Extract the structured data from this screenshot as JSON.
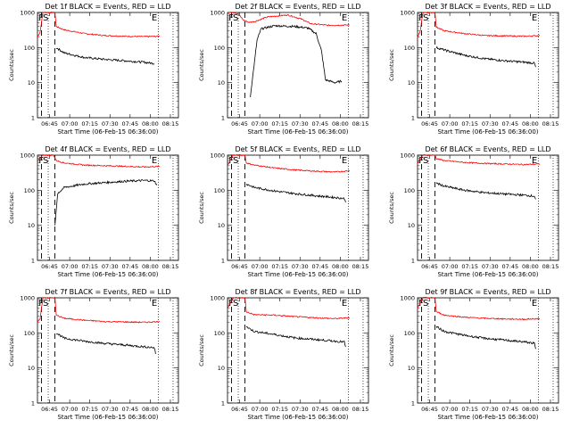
{
  "chart_data": [
    {
      "type": "line",
      "title": "Det 1f BLACK = Events, RED = LLD",
      "ylabel": "Counts/sec",
      "xlabel": "Start Time (06-Feb-15 06:36:00)",
      "x_ticks": [
        "06:45",
        "07:00",
        "07:15",
        "07:30",
        "07:45",
        "08:00",
        "08:15"
      ],
      "y_ticks": [
        "1",
        "10",
        "100",
        "1000"
      ],
      "ylim": [
        1,
        1000
      ],
      "yscale": "log",
      "xlim_minutes": [
        0,
        105
      ],
      "markers": [
        "F",
        "S",
        "E"
      ],
      "vlines_dashed_min": [
        3,
        13
      ],
      "vlines_dotted_min": [
        8,
        90,
        101
      ],
      "series": [
        {
          "color": "red",
          "values": [
            [
              0,
              200
            ],
            [
              2,
              280
            ],
            [
              4,
              1000
            ],
            [
              5,
              1000
            ],
            [
              13,
              1000
            ],
            [
              14,
              400
            ],
            [
              20,
              320
            ],
            [
              35,
              250
            ],
            [
              50,
              220
            ],
            [
              65,
              210
            ],
            [
              80,
              205
            ],
            [
              91,
              210
            ]
          ]
        },
        {
          "color": "black",
          "values": [
            [
              14,
              100
            ],
            [
              20,
              70
            ],
            [
              35,
              52
            ],
            [
              50,
              46
            ],
            [
              65,
              42
            ],
            [
              80,
              38
            ],
            [
              87,
              35
            ]
          ]
        }
      ]
    },
    {
      "type": "line",
      "title": "Det 2f BLACK = Events, RED = LLD",
      "ylabel": "Counts/sec",
      "xlabel": "Start Time (06-Feb-15 06:36:00)",
      "x_ticks": [
        "06:45",
        "07:00",
        "07:15",
        "07:30",
        "07:45",
        "08:00",
        "08:15"
      ],
      "y_ticks": [
        "1",
        "10",
        "100",
        "1000"
      ],
      "ylim": [
        1,
        1000
      ],
      "yscale": "log",
      "xlim_minutes": [
        0,
        105
      ],
      "markers": [
        "F",
        "S",
        "E"
      ],
      "vlines_dashed_min": [
        3,
        13
      ],
      "vlines_dotted_min": [
        8,
        90,
        101
      ],
      "series": [
        {
          "color": "red",
          "values": [
            [
              0,
              1000
            ],
            [
              5,
              1000
            ],
            [
              8,
              900
            ],
            [
              12,
              600
            ],
            [
              16,
              520
            ],
            [
              20,
              550
            ],
            [
              30,
              750
            ],
            [
              45,
              850
            ],
            [
              55,
              650
            ],
            [
              62,
              480
            ],
            [
              75,
              430
            ],
            [
              91,
              440
            ]
          ]
        },
        {
          "color": "black",
          "values": [
            [
              17,
              4
            ],
            [
              22,
              160
            ],
            [
              25,
              340
            ],
            [
              35,
              420
            ],
            [
              50,
              400
            ],
            [
              60,
              360
            ],
            [
              66,
              250
            ],
            [
              70,
              80
            ],
            [
              73,
              12
            ],
            [
              80,
              10
            ],
            [
              85,
              11
            ]
          ]
        }
      ]
    },
    {
      "type": "line",
      "title": "Det 3f BLACK = Events, RED = LLD",
      "ylabel": "Counts/sec",
      "xlabel": "Start Time (06-Feb-15 06:36:00)",
      "x_ticks": [
        "06:45",
        "07:00",
        "07:15",
        "07:30",
        "07:45",
        "08:00",
        "08:15"
      ],
      "y_ticks": [
        "1",
        "10",
        "100",
        "1000"
      ],
      "ylim": [
        1,
        1000
      ],
      "yscale": "log",
      "xlim_minutes": [
        0,
        105
      ],
      "markers": [
        "F",
        "S",
        "E"
      ],
      "vlines_dashed_min": [
        3,
        13
      ],
      "vlines_dotted_min": [
        8,
        90,
        101
      ],
      "series": [
        {
          "color": "red",
          "values": [
            [
              0,
              200
            ],
            [
              2,
              300
            ],
            [
              4,
              1000
            ],
            [
              13,
              1000
            ],
            [
              14,
              380
            ],
            [
              20,
              300
            ],
            [
              35,
              250
            ],
            [
              50,
              220
            ],
            [
              65,
              215
            ],
            [
              80,
              210
            ],
            [
              91,
              220
            ]
          ]
        },
        {
          "color": "black",
          "values": [
            [
              14,
              100
            ],
            [
              20,
              85
            ],
            [
              35,
              60
            ],
            [
              50,
              48
            ],
            [
              65,
              42
            ],
            [
              80,
              38
            ],
            [
              87,
              36
            ],
            [
              88,
              28
            ]
          ]
        }
      ]
    },
    {
      "type": "line",
      "title": "Det 4f BLACK = Events, RED = LLD",
      "ylabel": "Counts/sec",
      "xlabel": "Start Time (06-Feb-15 06:36:00)",
      "x_ticks": [
        "06:45",
        "07:00",
        "07:15",
        "07:30",
        "07:45",
        "08:00",
        "08:15"
      ],
      "y_ticks": [
        "1",
        "10",
        "100",
        "1000"
      ],
      "ylim": [
        1,
        1000
      ],
      "yscale": "log",
      "xlim_minutes": [
        0,
        105
      ],
      "markers": [
        "F",
        "S",
        "E"
      ],
      "vlines_dashed_min": [
        3,
        13
      ],
      "vlines_dotted_min": [
        8,
        90,
        101
      ],
      "series": [
        {
          "color": "red",
          "values": [
            [
              0,
              700
            ],
            [
              2,
              800
            ],
            [
              4,
              1000
            ],
            [
              12,
              1000
            ],
            [
              14,
              700
            ],
            [
              20,
              600
            ],
            [
              35,
              520
            ],
            [
              50,
              500
            ],
            [
              65,
              480
            ],
            [
              80,
              460
            ],
            [
              91,
              480
            ]
          ]
        },
        {
          "color": "black",
          "values": [
            [
              13,
              10
            ],
            [
              15,
              80
            ],
            [
              20,
              120
            ],
            [
              35,
              150
            ],
            [
              50,
              165
            ],
            [
              65,
              180
            ],
            [
              80,
              190
            ],
            [
              87,
              185
            ],
            [
              89,
              140
            ]
          ]
        }
      ]
    },
    {
      "type": "line",
      "title": "Det 5f BLACK = Events, RED = LLD",
      "ylabel": "Counts/sec",
      "xlabel": "Start Time (06-Feb-15 06:36:00)",
      "x_ticks": [
        "06:45",
        "07:00",
        "07:15",
        "07:30",
        "07:45",
        "08:00",
        "08:15"
      ],
      "y_ticks": [
        "1",
        "10",
        "100",
        "1000"
      ],
      "ylim": [
        1,
        1000
      ],
      "yscale": "log",
      "xlim_minutes": [
        0,
        105
      ],
      "markers": [
        "F",
        "S",
        "E"
      ],
      "vlines_dashed_min": [
        3,
        13
      ],
      "vlines_dotted_min": [
        8,
        90,
        101
      ],
      "series": [
        {
          "color": "red",
          "values": [
            [
              0,
              500
            ],
            [
              2,
              700
            ],
            [
              4,
              1000
            ],
            [
              13,
              1000
            ],
            [
              14,
              600
            ],
            [
              20,
              520
            ],
            [
              35,
              430
            ],
            [
              50,
              380
            ],
            [
              65,
              350
            ],
            [
              80,
              330
            ],
            [
              91,
              360
            ]
          ]
        },
        {
          "color": "black",
          "values": [
            [
              14,
              150
            ],
            [
              20,
              120
            ],
            [
              35,
              95
            ],
            [
              50,
              80
            ],
            [
              65,
              70
            ],
            [
              80,
              62
            ],
            [
              87,
              58
            ],
            [
              88,
              45
            ]
          ]
        }
      ]
    },
    {
      "type": "line",
      "title": "Det 6f BLACK = Events, RED = LLD",
      "ylabel": "Counts/sec",
      "xlabel": "Start Time (06-Feb-15 06:36:00)",
      "x_ticks": [
        "06:45",
        "07:00",
        "07:15",
        "07:30",
        "07:45",
        "08:00",
        "08:15"
      ],
      "y_ticks": [
        "1",
        "10",
        "100",
        "1000"
      ],
      "ylim": [
        1,
        1000
      ],
      "yscale": "log",
      "xlim_minutes": [
        0,
        105
      ],
      "markers": [
        "F",
        "S",
        "E"
      ],
      "vlines_dashed_min": [
        3,
        13
      ],
      "vlines_dotted_min": [
        8,
        90,
        101
      ],
      "series": [
        {
          "color": "red",
          "values": [
            [
              0,
              600
            ],
            [
              2,
              800
            ],
            [
              4,
              1000
            ],
            [
              13,
              1000
            ],
            [
              14,
              800
            ],
            [
              20,
              700
            ],
            [
              35,
              620
            ],
            [
              50,
              580
            ],
            [
              65,
              560
            ],
            [
              80,
              540
            ],
            [
              91,
              560
            ]
          ]
        },
        {
          "color": "black",
          "values": [
            [
              14,
              160
            ],
            [
              20,
              130
            ],
            [
              35,
              100
            ],
            [
              50,
              85
            ],
            [
              65,
              78
            ],
            [
              80,
              72
            ],
            [
              87,
              68
            ],
            [
              88,
              55
            ]
          ]
        }
      ]
    },
    {
      "type": "line",
      "title": "Det 7f BLACK = Events, RED = LLD",
      "ylabel": "Counts/sec",
      "xlabel": "Start Time (06-Feb-15 06:36:00)",
      "x_ticks": [
        "06:45",
        "07:00",
        "07:15",
        "07:30",
        "07:45",
        "08:00",
        "08:15"
      ],
      "y_ticks": [
        "1",
        "10",
        "100",
        "1000"
      ],
      "ylim": [
        1,
        1000
      ],
      "yscale": "log",
      "xlim_minutes": [
        0,
        105
      ],
      "markers": [
        "F",
        "S",
        "E"
      ],
      "vlines_dashed_min": [
        3,
        13
      ],
      "vlines_dotted_min": [
        8,
        90,
        101
      ],
      "series": [
        {
          "color": "red",
          "values": [
            [
              0,
              200
            ],
            [
              2,
              250
            ],
            [
              4,
              1000
            ],
            [
              13,
              1000
            ],
            [
              14,
              320
            ],
            [
              20,
              260
            ],
            [
              35,
              230
            ],
            [
              50,
              210
            ],
            [
              65,
              205
            ],
            [
              80,
              200
            ],
            [
              91,
              210
            ]
          ]
        },
        {
          "color": "black",
          "values": [
            [
              14,
              100
            ],
            [
              20,
              70
            ],
            [
              35,
              58
            ],
            [
              50,
              50
            ],
            [
              65,
              45
            ],
            [
              80,
              40
            ],
            [
              87,
              38
            ],
            [
              88,
              25
            ]
          ]
        }
      ]
    },
    {
      "type": "line",
      "title": "Det 8f BLACK = Events, RED = LLD",
      "ylabel": "Counts/sec",
      "xlabel": "Start Time (06-Feb-15 06:36:00)",
      "x_ticks": [
        "06:45",
        "07:00",
        "07:15",
        "07:30",
        "07:45",
        "08:00",
        "08:15"
      ],
      "y_ticks": [
        "1",
        "10",
        "100",
        "1000"
      ],
      "ylim": [
        1,
        1000
      ],
      "yscale": "log",
      "xlim_minutes": [
        0,
        105
      ],
      "markers": [
        "F",
        "S",
        "E"
      ],
      "vlines_dashed_min": [
        3,
        13
      ],
      "vlines_dotted_min": [
        8,
        90,
        101
      ],
      "series": [
        {
          "color": "red",
          "values": [
            [
              0,
              500
            ],
            [
              2,
              700
            ],
            [
              4,
              1000
            ],
            [
              13,
              1000
            ],
            [
              14,
              400
            ],
            [
              20,
              330
            ],
            [
              35,
              320
            ],
            [
              50,
              290
            ],
            [
              65,
              270
            ],
            [
              80,
              255
            ],
            [
              91,
              270
            ]
          ]
        },
        {
          "color": "black",
          "values": [
            [
              14,
              150
            ],
            [
              20,
              110
            ],
            [
              35,
              90
            ],
            [
              50,
              72
            ],
            [
              65,
              65
            ],
            [
              80,
              58
            ],
            [
              87,
              55
            ],
            [
              88,
              40
            ]
          ]
        }
      ]
    },
    {
      "type": "line",
      "title": "Det 9f BLACK = Events, RED = LLD",
      "ylabel": "Counts/sec",
      "xlabel": "Start Time (06-Feb-15 06:36:00)",
      "x_ticks": [
        "06:45",
        "07:00",
        "07:15",
        "07:30",
        "07:45",
        "08:00",
        "08:15"
      ],
      "y_ticks": [
        "1",
        "10",
        "100",
        "1000"
      ],
      "ylim": [
        1,
        1000
      ],
      "yscale": "log",
      "xlim_minutes": [
        0,
        105
      ],
      "markers": [
        "F",
        "S",
        "E"
      ],
      "vlines_dashed_min": [
        3,
        13
      ],
      "vlines_dotted_min": [
        8,
        90,
        101
      ],
      "series": [
        {
          "color": "red",
          "values": [
            [
              0,
              500
            ],
            [
              2,
              700
            ],
            [
              4,
              1000
            ],
            [
              13,
              1000
            ],
            [
              14,
              400
            ],
            [
              20,
              320
            ],
            [
              35,
              280
            ],
            [
              50,
              260
            ],
            [
              65,
              250
            ],
            [
              80,
              245
            ],
            [
              91,
              255
            ]
          ]
        },
        {
          "color": "black",
          "values": [
            [
              14,
              150
            ],
            [
              20,
              110
            ],
            [
              35,
              85
            ],
            [
              50,
              70
            ],
            [
              65,
              62
            ],
            [
              80,
              55
            ],
            [
              87,
              50
            ],
            [
              88,
              35
            ]
          ]
        }
      ]
    }
  ]
}
